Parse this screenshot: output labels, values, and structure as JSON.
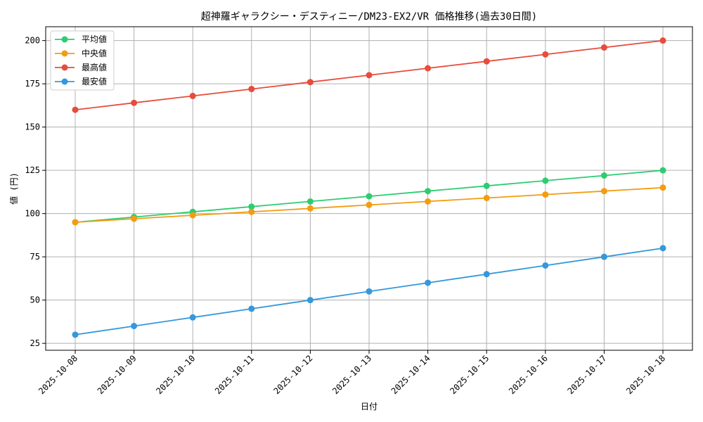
{
  "chart_data": {
    "type": "line",
    "title": "超神羅ギャラクシー・デスティニー/DM23-EX2/VR 価格推移(過去30日間)",
    "xlabel": "日付",
    "ylabel": "値 (円)",
    "categories": [
      "2025-10-08",
      "2025-10-09",
      "2025-10-10",
      "2025-10-11",
      "2025-10-12",
      "2025-10-13",
      "2025-10-14",
      "2025-10-15",
      "2025-10-16",
      "2025-10-17",
      "2025-10-18"
    ],
    "ylim": [
      21,
      208
    ],
    "yticks": [
      25,
      50,
      75,
      100,
      125,
      150,
      175,
      200
    ],
    "grid": true,
    "legend_position": "top-left",
    "series": [
      {
        "name": "平均値",
        "color": "#2ecc71",
        "values": [
          95,
          98,
          101,
          104,
          107,
          110,
          113,
          116,
          119,
          122,
          125
        ]
      },
      {
        "name": "中央値",
        "color": "#f39c12",
        "values": [
          95,
          97,
          99,
          101,
          103,
          105,
          107,
          109,
          111,
          113,
          115
        ]
      },
      {
        "name": "最高値",
        "color": "#e74c3c",
        "values": [
          160,
          164,
          168,
          172,
          176,
          180,
          184,
          188,
          192,
          196,
          200
        ]
      },
      {
        "name": "最安値",
        "color": "#3498db",
        "values": [
          30,
          35,
          40,
          45,
          50,
          55,
          60,
          65,
          70,
          75,
          80
        ]
      }
    ]
  }
}
